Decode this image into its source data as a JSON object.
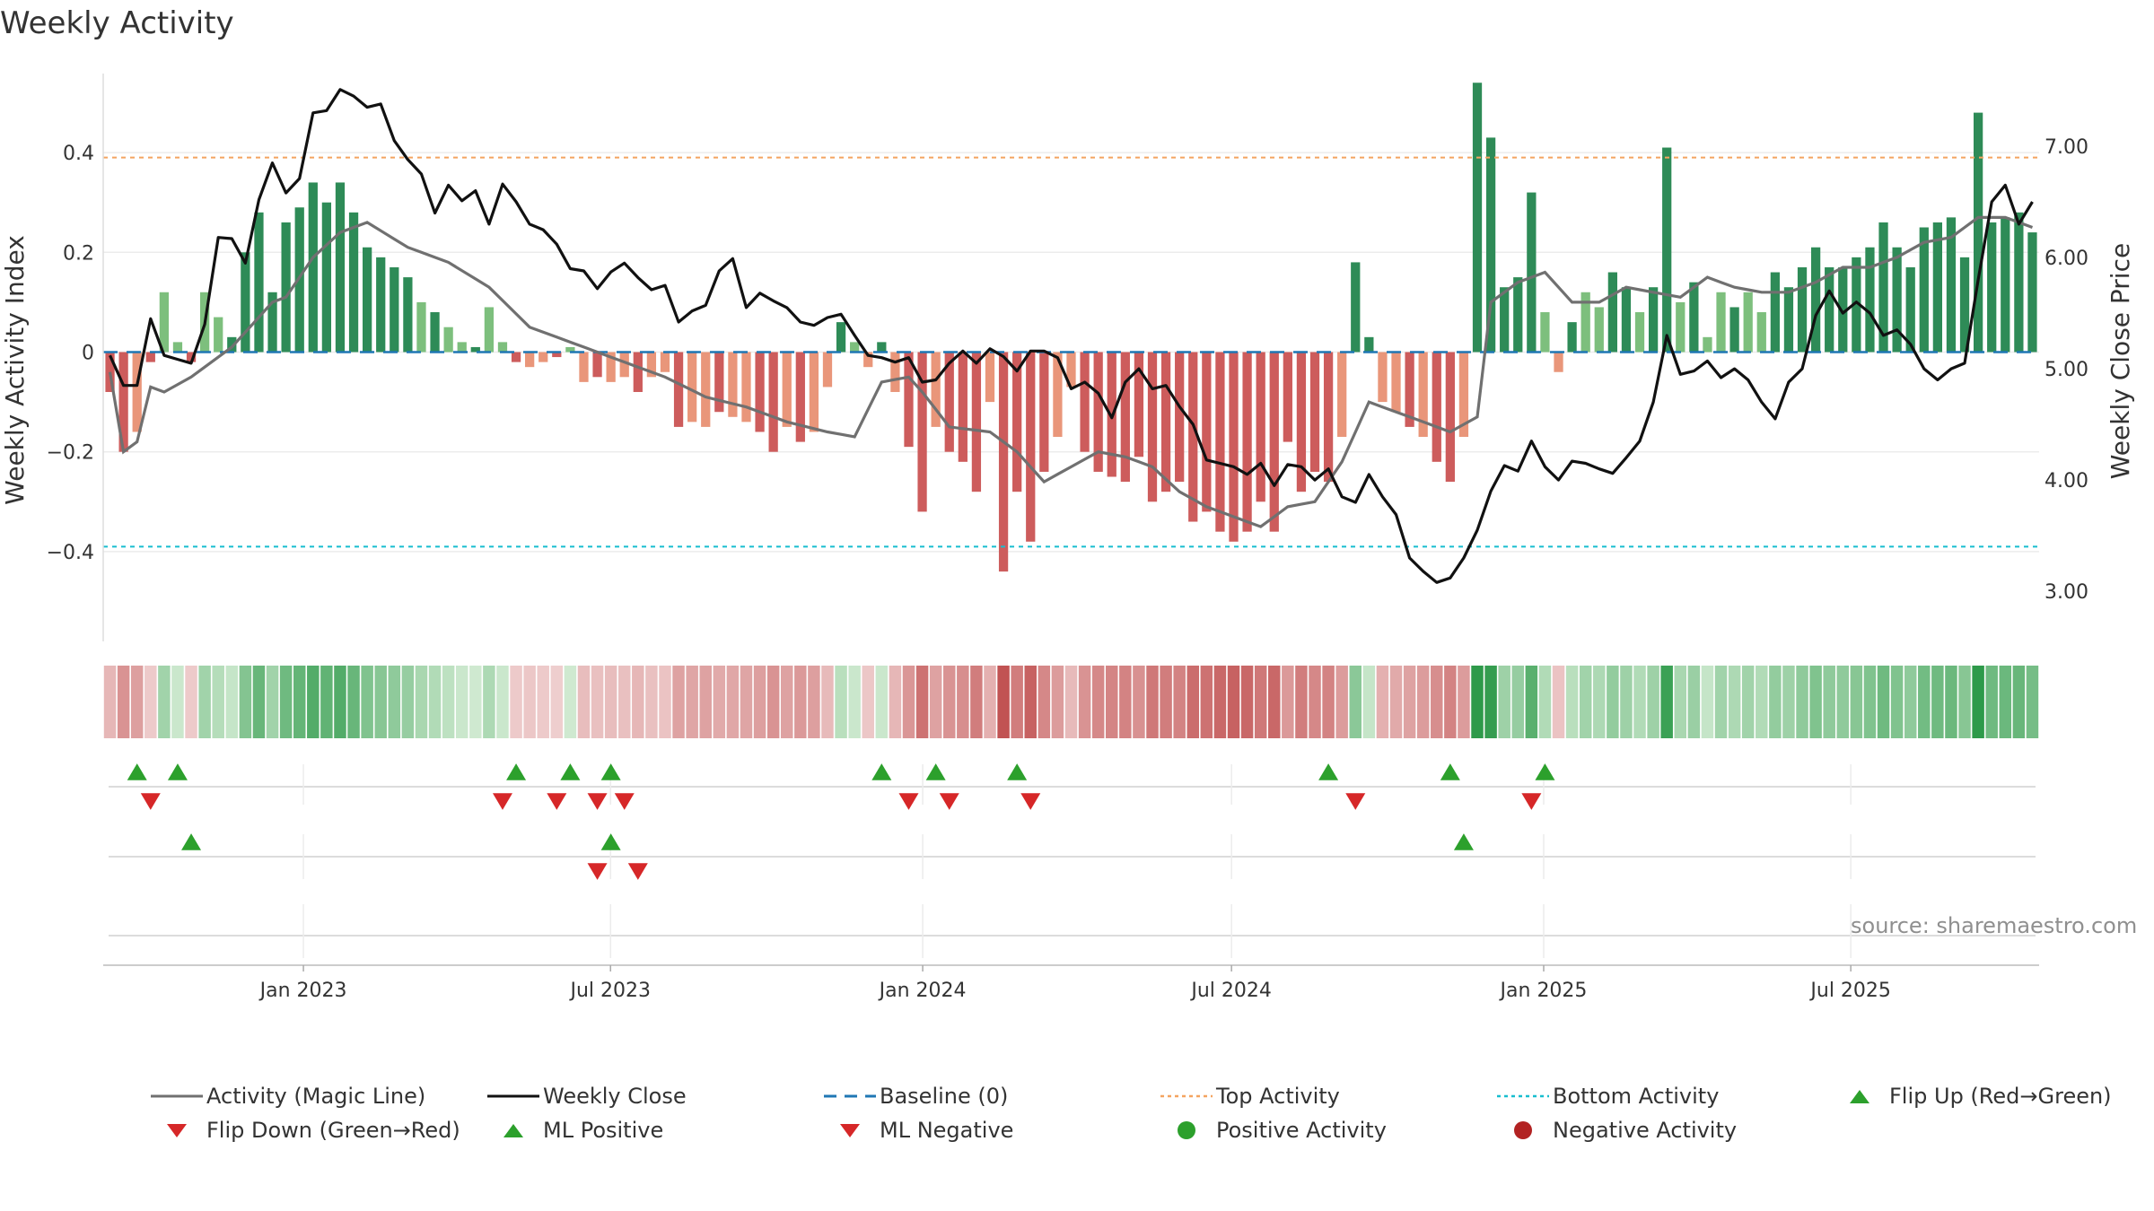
{
  "title": "Weekly Activity",
  "source": "source: sharemaestro.com",
  "colors": {
    "magic_line": "#707070",
    "close": "#111111",
    "baseline": "#1f77b4",
    "top": "#f4a460",
    "bottom": "#17becf",
    "pos_dark": "#2e8b57",
    "pos_light": "#7dbf7d",
    "neg_dark": "#cd5c5c",
    "neg_light": "#e9967a",
    "flip_up": "#2ca02c",
    "flip_down": "#d62728",
    "pos_dot": "#2ca02c",
    "neg_dot": "#b22222"
  },
  "chart_data": {
    "type": "bar+line",
    "title": "Weekly Activity",
    "ylabel_left": "Weekly Activity Index",
    "ylabel_right": "Weekly Close Price",
    "ylim_left": [
      -0.58,
      0.58
    ],
    "ylim_right": [
      2.55,
      7.75
    ],
    "yticks_left": [
      0.4,
      0.2,
      0,
      -0.2,
      -0.4
    ],
    "ytick_labels_left": [
      "0.4",
      "0.2",
      "0",
      "−0.2",
      "−0.4"
    ],
    "yticks_right": [
      7.0,
      6.0,
      5.0,
      4.0,
      3.0
    ],
    "ytick_labels_right": [
      "7.00",
      "6.00",
      "5.00",
      "4.00",
      "3.00"
    ],
    "top_activity": 0.39,
    "bottom_activity": -0.39,
    "x_start": "2022-09-05",
    "x_end": "2025-10-20",
    "x_ticks": [
      {
        "date": "2023-01-01",
        "label": "Jan 2023"
      },
      {
        "date": "2023-07-01",
        "label": "Jul 2023"
      },
      {
        "date": "2024-01-01",
        "label": "Jan 2024"
      },
      {
        "date": "2024-07-01",
        "label": "Jul 2024"
      },
      {
        "date": "2025-01-01",
        "label": "Jan 2025"
      },
      {
        "date": "2025-07-01",
        "label": "Jul 2025"
      }
    ],
    "activity_keyframes": [
      [
        0,
        -0.08
      ],
      [
        1,
        -0.2
      ],
      [
        2,
        -0.16
      ],
      [
        3,
        -0.02
      ],
      [
        4,
        0.12
      ],
      [
        5,
        0.02
      ],
      [
        6,
        -0.02
      ],
      [
        7,
        0.12
      ],
      [
        8,
        0.07
      ],
      [
        9,
        0.03
      ],
      [
        10,
        0.2
      ],
      [
        11,
        0.28
      ],
      [
        12,
        0.12
      ],
      [
        13,
        0.26
      ],
      [
        14,
        0.29
      ],
      [
        15,
        0.34
      ],
      [
        16,
        0.3
      ],
      [
        17,
        0.34
      ],
      [
        18,
        0.28
      ],
      [
        19,
        0.21
      ],
      [
        20,
        0.19
      ],
      [
        21,
        0.17
      ],
      [
        22,
        0.15
      ],
      [
        23,
        0.1
      ],
      [
        24,
        0.08
      ],
      [
        25,
        0.05
      ],
      [
        26,
        0.02
      ],
      [
        27,
        0.01
      ],
      [
        28,
        0.09
      ],
      [
        29,
        0.02
      ],
      [
        30,
        -0.02
      ],
      [
        31,
        -0.03
      ],
      [
        32,
        -0.02
      ],
      [
        33,
        -0.01
      ],
      [
        34,
        0.01
      ],
      [
        35,
        -0.06
      ],
      [
        36,
        -0.05
      ],
      [
        37,
        -0.06
      ],
      [
        38,
        -0.05
      ],
      [
        39,
        -0.08
      ],
      [
        40,
        -0.05
      ],
      [
        41,
        -0.04
      ],
      [
        42,
        -0.15
      ],
      [
        43,
        -0.14
      ],
      [
        44,
        -0.15
      ],
      [
        45,
        -0.12
      ],
      [
        46,
        -0.13
      ],
      [
        47,
        -0.14
      ],
      [
        48,
        -0.16
      ],
      [
        49,
        -0.2
      ],
      [
        50,
        -0.15
      ],
      [
        51,
        -0.18
      ],
      [
        52,
        -0.16
      ],
      [
        53,
        -0.07
      ],
      [
        54,
        0.06
      ],
      [
        55,
        0.02
      ],
      [
        56,
        -0.03
      ],
      [
        57,
        0.02
      ],
      [
        58,
        -0.08
      ],
      [
        59,
        -0.19
      ],
      [
        60,
        -0.32
      ],
      [
        61,
        -0.15
      ],
      [
        62,
        -0.2
      ],
      [
        63,
        -0.22
      ],
      [
        64,
        -0.28
      ],
      [
        65,
        -0.1
      ],
      [
        66,
        -0.44
      ],
      [
        67,
        -0.28
      ],
      [
        68,
        -0.38
      ],
      [
        69,
        -0.24
      ],
      [
        70,
        -0.17
      ],
      [
        71,
        -0.07
      ],
      [
        72,
        -0.2
      ],
      [
        73,
        -0.24
      ],
      [
        74,
        -0.25
      ],
      [
        75,
        -0.26
      ],
      [
        76,
        -0.21
      ],
      [
        77,
        -0.3
      ],
      [
        78,
        -0.28
      ],
      [
        79,
        -0.26
      ],
      [
        80,
        -0.34
      ],
      [
        81,
        -0.32
      ],
      [
        82,
        -0.36
      ],
      [
        83,
        -0.38
      ],
      [
        84,
        -0.36
      ],
      [
        85,
        -0.3
      ],
      [
        86,
        -0.36
      ],
      [
        87,
        -0.18
      ],
      [
        88,
        -0.28
      ],
      [
        89,
        -0.24
      ],
      [
        90,
        -0.26
      ],
      [
        91,
        -0.17
      ],
      [
        92,
        0.18
      ],
      [
        93,
        0.03
      ],
      [
        94,
        -0.1
      ],
      [
        95,
        -0.12
      ],
      [
        96,
        -0.15
      ],
      [
        97,
        -0.17
      ],
      [
        98,
        -0.22
      ],
      [
        99,
        -0.26
      ],
      [
        100,
        -0.17
      ],
      [
        101,
        0.54
      ],
      [
        102,
        0.43
      ],
      [
        103,
        0.13
      ],
      [
        104,
        0.15
      ],
      [
        105,
        0.32
      ],
      [
        106,
        0.08
      ],
      [
        107,
        -0.04
      ],
      [
        108,
        0.06
      ],
      [
        109,
        0.12
      ],
      [
        110,
        0.09
      ],
      [
        111,
        0.16
      ],
      [
        112,
        0.13
      ],
      [
        113,
        0.08
      ],
      [
        114,
        0.13
      ],
      [
        115,
        0.41
      ],
      [
        116,
        0.1
      ],
      [
        117,
        0.14
      ],
      [
        118,
        0.03
      ],
      [
        119,
        0.12
      ],
      [
        120,
        0.09
      ],
      [
        121,
        0.12
      ],
      [
        122,
        0.08
      ],
      [
        123,
        0.16
      ],
      [
        124,
        0.13
      ],
      [
        125,
        0.17
      ],
      [
        126,
        0.21
      ],
      [
        127,
        0.17
      ],
      [
        128,
        0.17
      ],
      [
        129,
        0.19
      ],
      [
        130,
        0.21
      ],
      [
        131,
        0.26
      ],
      [
        132,
        0.21
      ],
      [
        133,
        0.17
      ],
      [
        134,
        0.25
      ],
      [
        135,
        0.26
      ],
      [
        136,
        0.27
      ],
      [
        137,
        0.19
      ],
      [
        138,
        0.48
      ],
      [
        139,
        0.26
      ],
      [
        140,
        0.27
      ],
      [
        141,
        0.28
      ],
      [
        142,
        0.24
      ]
    ],
    "magic_line_keyframes": [
      [
        0,
        -0.04
      ],
      [
        1,
        -0.2
      ],
      [
        2,
        -0.18
      ],
      [
        3,
        -0.07
      ],
      [
        4,
        -0.08
      ],
      [
        6,
        -0.05
      ],
      [
        9,
        0.01
      ],
      [
        11,
        0.07
      ],
      [
        12,
        0.1
      ],
      [
        13,
        0.11
      ],
      [
        15,
        0.19
      ],
      [
        17,
        0.24
      ],
      [
        19,
        0.26
      ],
      [
        22,
        0.21
      ],
      [
        25,
        0.18
      ],
      [
        28,
        0.13
      ],
      [
        31,
        0.05
      ],
      [
        34,
        0.02
      ],
      [
        36,
        0.0
      ],
      [
        38,
        -0.02
      ],
      [
        41,
        -0.05
      ],
      [
        44,
        -0.09
      ],
      [
        47,
        -0.11
      ],
      [
        50,
        -0.14
      ],
      [
        53,
        -0.16
      ],
      [
        55,
        -0.17
      ],
      [
        57,
        -0.06
      ],
      [
        59,
        -0.05
      ],
      [
        60,
        -0.08
      ],
      [
        62,
        -0.15
      ],
      [
        65,
        -0.16
      ],
      [
        67,
        -0.2
      ],
      [
        69,
        -0.26
      ],
      [
        71,
        -0.23
      ],
      [
        73,
        -0.2
      ],
      [
        75,
        -0.21
      ],
      [
        77,
        -0.23
      ],
      [
        79,
        -0.28
      ],
      [
        81,
        -0.31
      ],
      [
        83,
        -0.33
      ],
      [
        85,
        -0.35
      ],
      [
        87,
        -0.31
      ],
      [
        89,
        -0.3
      ],
      [
        91,
        -0.22
      ],
      [
        93,
        -0.1
      ],
      [
        95,
        -0.12
      ],
      [
        97,
        -0.14
      ],
      [
        99,
        -0.16
      ],
      [
        101,
        -0.13
      ],
      [
        102,
        0.1
      ],
      [
        104,
        0.14
      ],
      [
        106,
        0.16
      ],
      [
        108,
        0.1
      ],
      [
        110,
        0.1
      ],
      [
        112,
        0.13
      ],
      [
        114,
        0.12
      ],
      [
        116,
        0.11
      ],
      [
        118,
        0.15
      ],
      [
        120,
        0.13
      ],
      [
        122,
        0.12
      ],
      [
        124,
        0.12
      ],
      [
        126,
        0.14
      ],
      [
        128,
        0.17
      ],
      [
        130,
        0.17
      ],
      [
        132,
        0.19
      ],
      [
        134,
        0.22
      ],
      [
        136,
        0.23
      ],
      [
        138,
        0.27
      ],
      [
        140,
        0.27
      ],
      [
        142,
        0.25
      ]
    ],
    "close_keyframes": [
      [
        0,
        5.12
      ],
      [
        1,
        4.85
      ],
      [
        2,
        4.85
      ],
      [
        3,
        5.45
      ],
      [
        4,
        5.12
      ],
      [
        6,
        5.05
      ],
      [
        7,
        5.4
      ],
      [
        8,
        6.18
      ],
      [
        9,
        6.17
      ],
      [
        10,
        5.95
      ],
      [
        11,
        6.52
      ],
      [
        12,
        6.85
      ],
      [
        13,
        6.58
      ],
      [
        14,
        6.71
      ],
      [
        15,
        7.3
      ],
      [
        16,
        7.32
      ],
      [
        17,
        7.51
      ],
      [
        18,
        7.45
      ],
      [
        19,
        7.35
      ],
      [
        20,
        7.38
      ],
      [
        21,
        7.05
      ],
      [
        22,
        6.88
      ],
      [
        23,
        6.75
      ],
      [
        24,
        6.4
      ],
      [
        25,
        6.65
      ],
      [
        26,
        6.51
      ],
      [
        27,
        6.6
      ],
      [
        28,
        6.3
      ],
      [
        29,
        6.66
      ],
      [
        30,
        6.5
      ],
      [
        31,
        6.3
      ],
      [
        32,
        6.25
      ],
      [
        33,
        6.12
      ],
      [
        34,
        5.9
      ],
      [
        35,
        5.88
      ],
      [
        36,
        5.72
      ],
      [
        37,
        5.87
      ],
      [
        38,
        5.95
      ],
      [
        39,
        5.82
      ],
      [
        40,
        5.71
      ],
      [
        41,
        5.75
      ],
      [
        42,
        5.42
      ],
      [
        43,
        5.52
      ],
      [
        44,
        5.57
      ],
      [
        45,
        5.88
      ],
      [
        46,
        5.99
      ],
      [
        47,
        5.55
      ],
      [
        48,
        5.68
      ],
      [
        49,
        5.61
      ],
      [
        50,
        5.55
      ],
      [
        51,
        5.42
      ],
      [
        52,
        5.39
      ],
      [
        53,
        5.46
      ],
      [
        54,
        5.49
      ],
      [
        55,
        5.3
      ],
      [
        56,
        5.12
      ],
      [
        57,
        5.1
      ],
      [
        58,
        5.06
      ],
      [
        59,
        5.1
      ],
      [
        60,
        4.88
      ],
      [
        61,
        4.9
      ],
      [
        62,
        5.05
      ],
      [
        63,
        5.16
      ],
      [
        64,
        5.05
      ],
      [
        65,
        5.18
      ],
      [
        66,
        5.11
      ],
      [
        67,
        4.98
      ],
      [
        68,
        5.16
      ],
      [
        69,
        5.16
      ],
      [
        70,
        5.1
      ],
      [
        71,
        4.82
      ],
      [
        72,
        4.88
      ],
      [
        73,
        4.78
      ],
      [
        74,
        4.56
      ],
      [
        75,
        4.88
      ],
      [
        76,
        5.0
      ],
      [
        77,
        4.82
      ],
      [
        78,
        4.85
      ],
      [
        79,
        4.66
      ],
      [
        80,
        4.5
      ],
      [
        81,
        4.18
      ],
      [
        82,
        4.15
      ],
      [
        83,
        4.12
      ],
      [
        84,
        4.05
      ],
      [
        85,
        4.15
      ],
      [
        86,
        3.95
      ],
      [
        87,
        4.14
      ],
      [
        88,
        4.12
      ],
      [
        89,
        4.0
      ],
      [
        90,
        4.1
      ],
      [
        91,
        3.85
      ],
      [
        92,
        3.8
      ],
      [
        93,
        4.05
      ],
      [
        94,
        3.85
      ],
      [
        95,
        3.69
      ],
      [
        96,
        3.3
      ],
      [
        97,
        3.18
      ],
      [
        98,
        3.08
      ],
      [
        99,
        3.12
      ],
      [
        100,
        3.3
      ],
      [
        101,
        3.55
      ],
      [
        102,
        3.9
      ],
      [
        103,
        4.13
      ],
      [
        104,
        4.08
      ],
      [
        105,
        4.35
      ],
      [
        106,
        4.12
      ],
      [
        107,
        4.0
      ],
      [
        108,
        4.17
      ],
      [
        109,
        4.15
      ],
      [
        110,
        4.1
      ],
      [
        111,
        4.06
      ],
      [
        112,
        4.2
      ],
      [
        113,
        4.35
      ],
      [
        114,
        4.7
      ],
      [
        115,
        5.3
      ],
      [
        116,
        4.95
      ],
      [
        117,
        4.98
      ],
      [
        118,
        5.07
      ],
      [
        119,
        4.92
      ],
      [
        120,
        5.0
      ],
      [
        121,
        4.9
      ],
      [
        122,
        4.7
      ],
      [
        123,
        4.55
      ],
      [
        124,
        4.88
      ],
      [
        125,
        5.0
      ],
      [
        126,
        5.48
      ],
      [
        127,
        5.7
      ],
      [
        128,
        5.5
      ],
      [
        129,
        5.6
      ],
      [
        130,
        5.5
      ],
      [
        131,
        5.3
      ],
      [
        132,
        5.35
      ],
      [
        133,
        5.22
      ],
      [
        134,
        5.0
      ],
      [
        135,
        4.9
      ],
      [
        136,
        5.0
      ],
      [
        137,
        5.05
      ],
      [
        138,
        5.8
      ],
      [
        139,
        6.5
      ],
      [
        140,
        6.65
      ],
      [
        141,
        6.3
      ],
      [
        142,
        6.5
      ]
    ],
    "flip_up_row1": [
      2,
      5,
      30,
      34,
      37,
      57,
      61,
      67,
      90,
      99,
      106
    ],
    "flip_down_row1": [
      3,
      29,
      33,
      36,
      38,
      59,
      62,
      68,
      92,
      105
    ],
    "flip_up_row2": [
      6,
      37,
      100
    ],
    "flip_down_row2": [
      36,
      39
    ]
  },
  "legend": [
    {
      "label": "Activity (Magic Line)",
      "symbol": "line",
      "color": "#707070"
    },
    {
      "label": "Weekly Close",
      "symbol": "line",
      "color": "#111111"
    },
    {
      "label": "Baseline (0)",
      "symbol": "dash",
      "color": "#1f77b4"
    },
    {
      "label": "Top Activity",
      "symbol": "dot-line",
      "color": "#f4a460"
    },
    {
      "label": "Bottom Activity",
      "symbol": "dot-line",
      "color": "#17becf"
    },
    {
      "label": "Flip Up (Red→Green)",
      "symbol": "tri-up",
      "color": "#2ca02c"
    },
    {
      "label": "Flip Down (Green→Red)",
      "symbol": "tri-down",
      "color": "#d62728"
    },
    {
      "label": "ML Positive",
      "symbol": "tri-up",
      "color": "#2ca02c"
    },
    {
      "label": "ML Negative",
      "symbol": "tri-down",
      "color": "#d62728"
    },
    {
      "label": "Positive Activity",
      "symbol": "circle",
      "color": "#2ca02c"
    },
    {
      "label": "Negative Activity",
      "symbol": "circle",
      "color": "#b22222"
    }
  ]
}
